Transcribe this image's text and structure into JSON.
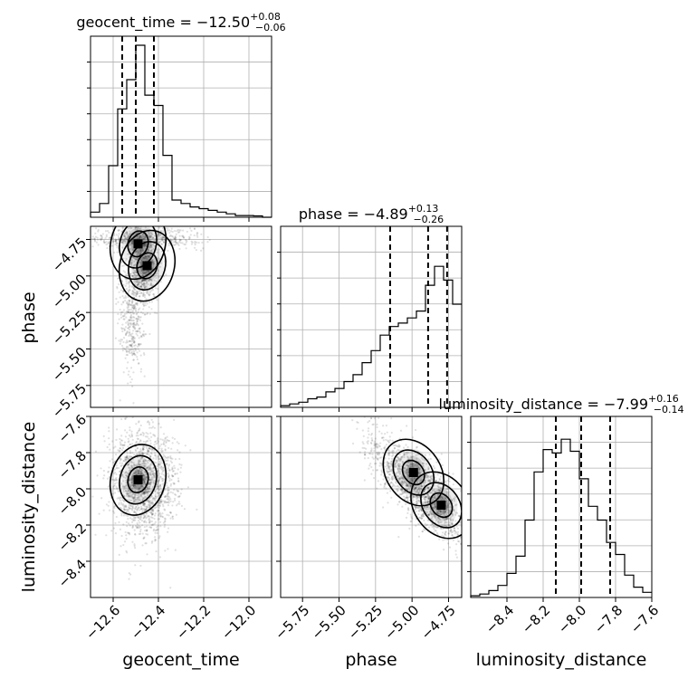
{
  "chart_data": {
    "type": "corner",
    "parameters": [
      "geocent_time",
      "phase",
      "luminosity_distance"
    ],
    "titles": [
      {
        "param": "geocent_time",
        "median": "−12.50",
        "plus": "+0.08",
        "minus": "−0.06"
      },
      {
        "param": "phase",
        "median": "−4.89",
        "plus": "+0.13",
        "minus": "−0.26"
      },
      {
        "param": "luminosity_distance",
        "median": "−7.99",
        "plus": "+0.16",
        "minus": "−0.14"
      }
    ],
    "axes": {
      "geocent_time": {
        "range": [
          -12.7,
          -11.9
        ],
        "ticks": [
          -12.6,
          -12.4,
          -12.2,
          -12.0
        ],
        "tick_labels": [
          "−12.6",
          "−12.4",
          "−12.2",
          "−12.0"
        ]
      },
      "phase": {
        "range": [
          -5.9,
          -4.66
        ],
        "ticks": [
          -5.75,
          -5.5,
          -5.25,
          -5.0,
          -4.75
        ],
        "tick_labels": [
          "−5.75",
          "−5.50",
          "−5.25",
          "−5.00",
          "−4.75"
        ]
      },
      "luminosity_distance": {
        "range": [
          -8.6,
          -7.6
        ],
        "ticks": [
          -8.4,
          -8.2,
          -8.0,
          -7.8,
          -7.6
        ],
        "tick_labels": [
          "−8.4",
          "−8.2",
          "−8.0",
          "−7.8",
          "−7.6"
        ]
      }
    },
    "quantile_lines": {
      "geocent_time": [
        -12.56,
        -12.5,
        -12.42
      ],
      "phase": [
        -5.15,
        -4.89,
        -4.76
      ],
      "luminosity_distance": [
        -8.13,
        -7.99,
        -7.83
      ]
    },
    "histograms": {
      "geocent_time": {
        "edges_range": [
          -12.7,
          -11.9
        ],
        "bins": 20,
        "heights": [
          0.03,
          0.08,
          0.3,
          0.63,
          0.8,
          1.0,
          0.71,
          0.65,
          0.36,
          0.1,
          0.08,
          0.06,
          0.05,
          0.04,
          0.03,
          0.02,
          0.01,
          0.01,
          0.008,
          0.0
        ]
      },
      "phase": {
        "edges_range": [
          -5.9,
          -4.66
        ],
        "bins": 20,
        "heights": [
          0.01,
          0.02,
          0.03,
          0.05,
          0.06,
          0.09,
          0.11,
          0.15,
          0.19,
          0.26,
          0.33,
          0.42,
          0.47,
          0.49,
          0.52,
          0.56,
          0.71,
          0.82,
          0.74,
          0.6
        ]
      },
      "luminosity_distance": {
        "edges_range": [
          -8.6,
          -7.6
        ],
        "bins": 20,
        "heights": [
          0.01,
          0.02,
          0.04,
          0.07,
          0.14,
          0.24,
          0.45,
          0.73,
          0.86,
          0.84,
          0.92,
          0.85,
          0.69,
          0.53,
          0.45,
          0.32,
          0.25,
          0.13,
          0.06,
          0.03
        ]
      }
    },
    "joint_2d": [
      {
        "x": "geocent_time",
        "y": "phase",
        "density_modes": [
          [
            -12.49,
            -4.78
          ],
          [
            -12.45,
            -4.93
          ]
        ]
      },
      {
        "x": "geocent_time",
        "y": "luminosity_distance",
        "density_modes": [
          [
            -12.49,
            -7.95
          ]
        ]
      },
      {
        "x": "phase",
        "y": "luminosity_distance",
        "density_modes": [
          [
            -4.8,
            -8.09
          ],
          [
            -4.99,
            -7.91
          ]
        ]
      }
    ],
    "grid": true
  }
}
